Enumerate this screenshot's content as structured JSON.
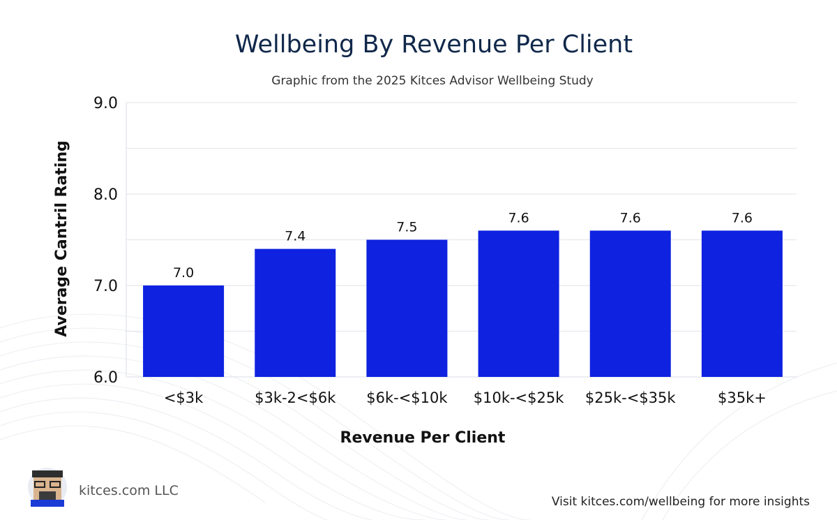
{
  "chart_data": {
    "type": "bar",
    "title": "Wellbeing By Revenue Per Client",
    "subtitle": "Graphic from the 2025 Kitces Advisor Wellbeing Study",
    "xlabel": "Revenue Per Client",
    "ylabel": "Average Cantril Rating",
    "categories": [
      "<$3k",
      "$3k-2<$6k",
      "$6k-<$10k",
      "$10k-<$25k",
      "$25k-<$35k",
      "$35k+"
    ],
    "values": [
      7.0,
      7.4,
      7.5,
      7.6,
      7.6,
      7.6
    ],
    "data_labels": [
      "7.0",
      "7.4",
      "7.5",
      "7.6",
      "7.6",
      "7.6"
    ],
    "ylim": [
      6.0,
      9.0
    ],
    "yticks": [
      "6.0",
      "7.0",
      "8.0",
      "9.0"
    ],
    "ytick_values": [
      6.0,
      7.0,
      8.0,
      9.0
    ],
    "grid_values": [
      6.5,
      7.0,
      7.5,
      8.0,
      8.5,
      9.0
    ],
    "grid": true,
    "bar_color": "#0e22e0",
    "grid_color": "#e6e8ee"
  },
  "footer": {
    "brand": "kitces.com LLC",
    "cta": "Visit kitces.com/wellbeing for more insights"
  }
}
